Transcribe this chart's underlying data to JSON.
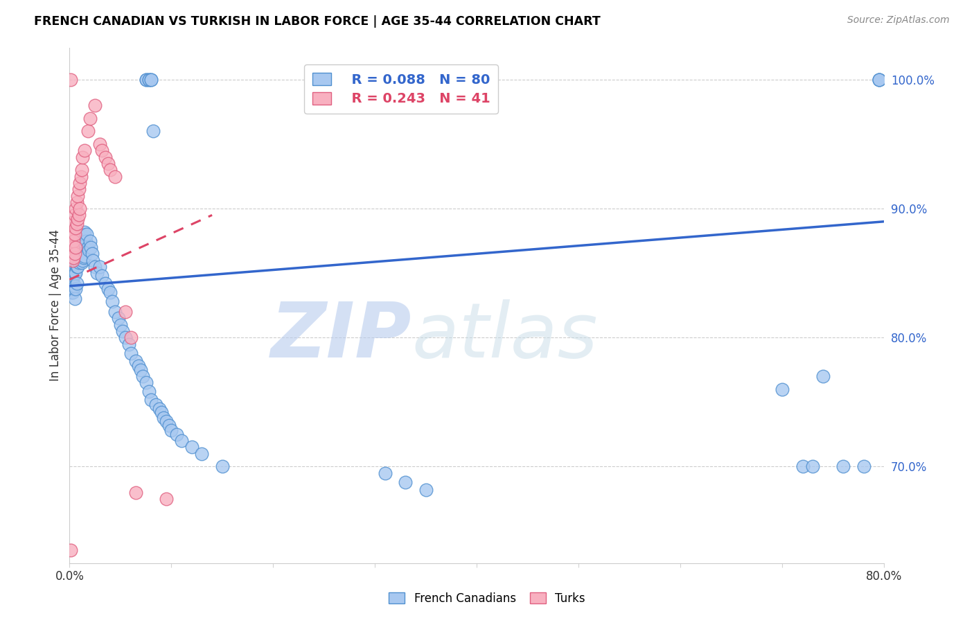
{
  "title": "FRENCH CANADIAN VS TURKISH IN LABOR FORCE | AGE 35-44 CORRELATION CHART",
  "source": "Source: ZipAtlas.com",
  "ylabel": "In Labor Force | Age 35-44",
  "xlim": [
    0.0,
    0.8
  ],
  "ylim": [
    0.625,
    1.025
  ],
  "xtick_positions": [
    0.0,
    0.1,
    0.2,
    0.3,
    0.4,
    0.5,
    0.6,
    0.7,
    0.8
  ],
  "xtick_labels": [
    "0.0%",
    "",
    "",
    "",
    "",
    "",
    "",
    "",
    "80.0%"
  ],
  "ytick_values": [
    0.7,
    0.8,
    0.9,
    1.0
  ],
  "ytick_labels": [
    "70.0%",
    "80.0%",
    "90.0%",
    "100.0%"
  ],
  "blue_R": 0.088,
  "blue_N": 80,
  "pink_R": 0.243,
  "pink_N": 41,
  "blue_color": "#a8c8f0",
  "blue_edge_color": "#5090d0",
  "pink_color": "#f8b0c0",
  "pink_edge_color": "#e06080",
  "blue_line_color": "#3366cc",
  "pink_line_color": "#dd4466",
  "watermark_zip": "ZIP",
  "watermark_atlas": "atlas",
  "blue_x": [
    0.001,
    0.002,
    0.002,
    0.003,
    0.003,
    0.003,
    0.004,
    0.004,
    0.004,
    0.005,
    0.005,
    0.005,
    0.005,
    0.006,
    0.006,
    0.006,
    0.007,
    0.007,
    0.007,
    0.008,
    0.008,
    0.009,
    0.009,
    0.01,
    0.01,
    0.011,
    0.011,
    0.012,
    0.012,
    0.013,
    0.013,
    0.014,
    0.014,
    0.015,
    0.015,
    0.016,
    0.017,
    0.018,
    0.019,
    0.02,
    0.021,
    0.022,
    0.023,
    0.025,
    0.027,
    0.03,
    0.032,
    0.035,
    0.038,
    0.04,
    0.042,
    0.045,
    0.048,
    0.05,
    0.052,
    0.055,
    0.058,
    0.06,
    0.065,
    0.068,
    0.07,
    0.072,
    0.075,
    0.078,
    0.08,
    0.085,
    0.088,
    0.09,
    0.092,
    0.095,
    0.098,
    0.1,
    0.105,
    0.11,
    0.12,
    0.13,
    0.15,
    0.31,
    0.33,
    0.35
  ],
  "blue_y": [
    0.84,
    0.85,
    0.835,
    0.855,
    0.845,
    0.835,
    0.858,
    0.848,
    0.838,
    0.86,
    0.85,
    0.84,
    0.83,
    0.862,
    0.85,
    0.838,
    0.865,
    0.855,
    0.842,
    0.87,
    0.855,
    0.875,
    0.858,
    0.878,
    0.862,
    0.88,
    0.863,
    0.875,
    0.858,
    0.878,
    0.86,
    0.88,
    0.862,
    0.882,
    0.863,
    0.875,
    0.88,
    0.87,
    0.868,
    0.875,
    0.87,
    0.865,
    0.86,
    0.855,
    0.85,
    0.855,
    0.848,
    0.842,
    0.838,
    0.835,
    0.828,
    0.82,
    0.815,
    0.81,
    0.805,
    0.8,
    0.795,
    0.788,
    0.782,
    0.778,
    0.775,
    0.77,
    0.765,
    0.758,
    0.752,
    0.748,
    0.745,
    0.742,
    0.738,
    0.735,
    0.732,
    0.728,
    0.725,
    0.72,
    0.715,
    0.71,
    0.7,
    0.695,
    0.688,
    0.682
  ],
  "blue_x_outliers": [
    0.075,
    0.075,
    0.078,
    0.078,
    0.08,
    0.08,
    0.082,
    0.7,
    0.72,
    0.73,
    0.74,
    0.76,
    0.78,
    0.795,
    0.795,
    0.795
  ],
  "blue_y_outliers": [
    1.0,
    1.0,
    1.0,
    1.0,
    1.0,
    1.0,
    0.96,
    0.76,
    0.7,
    0.7,
    0.77,
    0.7,
    0.7,
    1.0,
    1.0,
    1.0
  ],
  "pink_x": [
    0.001,
    0.001,
    0.002,
    0.002,
    0.003,
    0.003,
    0.003,
    0.004,
    0.004,
    0.004,
    0.005,
    0.005,
    0.005,
    0.006,
    0.006,
    0.006,
    0.007,
    0.007,
    0.008,
    0.008,
    0.009,
    0.009,
    0.01,
    0.01,
    0.011,
    0.012,
    0.013,
    0.015,
    0.018,
    0.02,
    0.025,
    0.03,
    0.032,
    0.035,
    0.038,
    0.04,
    0.045,
    0.055,
    0.06,
    0.065,
    0.095
  ],
  "pink_y": [
    0.635,
    1.0,
    0.88,
    0.87,
    0.88,
    0.87,
    0.86,
    0.89,
    0.875,
    0.862,
    0.895,
    0.88,
    0.865,
    0.9,
    0.885,
    0.87,
    0.905,
    0.888,
    0.91,
    0.892,
    0.915,
    0.895,
    0.92,
    0.9,
    0.925,
    0.93,
    0.94,
    0.945,
    0.96,
    0.97,
    0.98,
    0.95,
    0.945,
    0.94,
    0.935,
    0.93,
    0.925,
    0.82,
    0.8,
    0.68,
    0.675
  ]
}
